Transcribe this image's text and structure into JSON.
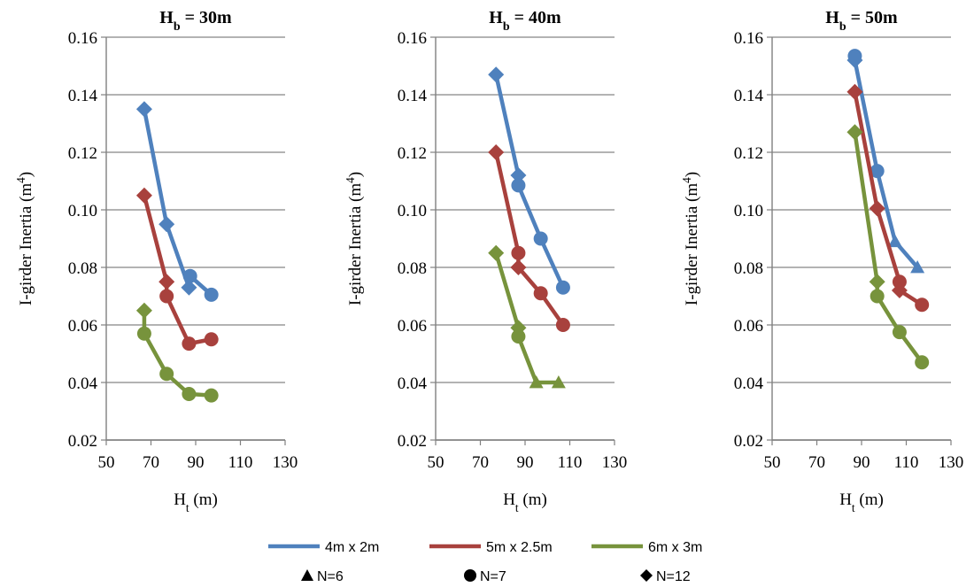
{
  "colors": {
    "4m x 2m": "#4F81BD",
    "5m x 2.5m": "#A8413D",
    "6m x 3m": "#77933C",
    "grid": "#9a9a9a",
    "axis": "#808080"
  },
  "legend": {
    "series": [
      "4m x 2m",
      "5m x 2.5m",
      "6m x 3m"
    ],
    "markers": [
      {
        "symbol": "triangle",
        "label": "N=6"
      },
      {
        "symbol": "circle",
        "label": "N=7"
      },
      {
        "symbol": "diamond",
        "label": "N=12"
      }
    ]
  },
  "chart_data": [
    {
      "type": "line",
      "title_main": "H",
      "title_sub": "b",
      "title_rest": " = 30m",
      "xlabel_main": "H",
      "xlabel_sub": "t",
      "xlabel_rest": " (m)",
      "ylabel_main": "I-girder Inertia (m",
      "ylabel_sup": "4",
      "ylabel_rest": ")",
      "xlim": [
        50,
        130
      ],
      "ylim": [
        0.02,
        0.16
      ],
      "xticks": [
        "50",
        "70",
        "90",
        "110",
        "130"
      ],
      "yticks": [
        "0.02",
        "0.04",
        "0.06",
        "0.08",
        "0.10",
        "0.12",
        "0.14",
        "0.16"
      ],
      "grid": true,
      "series": [
        {
          "name": "4m x 2m",
          "points": [
            {
              "x": 67,
              "y": 0.135,
              "marker": "diamond"
            },
            {
              "x": 77,
              "y": 0.095,
              "marker": "diamond"
            },
            {
              "x": 87,
              "y": 0.073,
              "marker": "diamond"
            },
            {
              "x": 87.5,
              "y": 0.077,
              "marker": "circle"
            },
            {
              "x": 97,
              "y": 0.0705,
              "marker": "circle"
            }
          ]
        },
        {
          "name": "5m x 2.5m",
          "points": [
            {
              "x": 67,
              "y": 0.105,
              "marker": "diamond"
            },
            {
              "x": 77,
              "y": 0.075,
              "marker": "diamond"
            },
            {
              "x": 77,
              "y": 0.07,
              "marker": "circle"
            },
            {
              "x": 87,
              "y": 0.0535,
              "marker": "circle"
            },
            {
              "x": 97,
              "y": 0.055,
              "marker": "circle"
            }
          ]
        },
        {
          "name": "6m x 3m",
          "points": [
            {
              "x": 67,
              "y": 0.065,
              "marker": "diamond"
            },
            {
              "x": 67,
              "y": 0.057,
              "marker": "circle"
            },
            {
              "x": 77,
              "y": 0.043,
              "marker": "circle"
            },
            {
              "x": 87,
              "y": 0.036,
              "marker": "circle"
            },
            {
              "x": 97,
              "y": 0.0355,
              "marker": "circle"
            }
          ]
        }
      ]
    },
    {
      "type": "line",
      "title_main": "H",
      "title_sub": "b",
      "title_rest": " = 40m",
      "xlabel_main": "H",
      "xlabel_sub": "t",
      "xlabel_rest": " (m)",
      "ylabel_main": "I-girder Inertia (m",
      "ylabel_sup": "4",
      "ylabel_rest": ")",
      "xlim": [
        50,
        130
      ],
      "ylim": [
        0.02,
        0.16
      ],
      "xticks": [
        "50",
        "70",
        "90",
        "110",
        "130"
      ],
      "yticks": [
        "0.02",
        "0.04",
        "0.06",
        "0.08",
        "0.10",
        "0.12",
        "0.14",
        "0.16"
      ],
      "grid": true,
      "series": [
        {
          "name": "4m x 2m",
          "points": [
            {
              "x": 77,
              "y": 0.147,
              "marker": "diamond"
            },
            {
              "x": 87,
              "y": 0.112,
              "marker": "diamond"
            },
            {
              "x": 87,
              "y": 0.1085,
              "marker": "circle"
            },
            {
              "x": 97,
              "y": 0.09,
              "marker": "circle"
            },
            {
              "x": 107,
              "y": 0.073,
              "marker": "circle"
            }
          ]
        },
        {
          "name": "5m x 2.5m",
          "points": [
            {
              "x": 77,
              "y": 0.12,
              "marker": "diamond"
            },
            {
              "x": 87,
              "y": 0.085,
              "marker": "circle"
            },
            {
              "x": 87,
              "y": 0.08,
              "marker": "diamond"
            },
            {
              "x": 97,
              "y": 0.071,
              "marker": "circle"
            },
            {
              "x": 107,
              "y": 0.06,
              "marker": "circle"
            }
          ]
        },
        {
          "name": "6m x 3m",
          "points": [
            {
              "x": 77,
              "y": 0.085,
              "marker": "diamond"
            },
            {
              "x": 87,
              "y": 0.059,
              "marker": "diamond"
            },
            {
              "x": 87,
              "y": 0.056,
              "marker": "circle"
            },
            {
              "x": 95,
              "y": 0.04,
              "marker": "triangle"
            },
            {
              "x": 105,
              "y": 0.04,
              "marker": "triangle"
            }
          ]
        }
      ]
    },
    {
      "type": "line",
      "title_main": "H",
      "title_sub": "b",
      "title_rest": " = 50m",
      "xlabel_main": "H",
      "xlabel_sub": "t",
      "xlabel_rest": " (m)",
      "ylabel_main": "I-girder Inertia (m",
      "ylabel_sup": "4",
      "ylabel_rest": ")",
      "xlim": [
        50,
        130
      ],
      "ylim": [
        0.02,
        0.16
      ],
      "xticks": [
        "50",
        "70",
        "90",
        "110",
        "130"
      ],
      "yticks": [
        "0.02",
        "0.04",
        "0.06",
        "0.08",
        "0.10",
        "0.12",
        "0.14",
        "0.16"
      ],
      "grid": true,
      "series": [
        {
          "name": "4m x 2m",
          "points": [
            {
              "x": 87,
              "y": 0.1535,
              "marker": "circle"
            },
            {
              "x": 87,
              "y": 0.152,
              "marker": "diamond"
            },
            {
              "x": 97,
              "y": 0.1135,
              "marker": "circle"
            },
            {
              "x": 105,
              "y": 0.089,
              "marker": "triangle"
            },
            {
              "x": 115,
              "y": 0.08,
              "marker": "triangle"
            }
          ]
        },
        {
          "name": "5m x 2.5m",
          "points": [
            {
              "x": 87,
              "y": 0.141,
              "marker": "diamond"
            },
            {
              "x": 97,
              "y": 0.1005,
              "marker": "diamond"
            },
            {
              "x": 107,
              "y": 0.075,
              "marker": "circle"
            },
            {
              "x": 107,
              "y": 0.072,
              "marker": "diamond"
            },
            {
              "x": 117,
              "y": 0.067,
              "marker": "circle"
            }
          ]
        },
        {
          "name": "6m x 3m",
          "points": [
            {
              "x": 87,
              "y": 0.127,
              "marker": "diamond"
            },
            {
              "x": 97,
              "y": 0.075,
              "marker": "diamond"
            },
            {
              "x": 97,
              "y": 0.07,
              "marker": "circle"
            },
            {
              "x": 107,
              "y": 0.0575,
              "marker": "circle"
            },
            {
              "x": 117,
              "y": 0.047,
              "marker": "circle"
            }
          ]
        }
      ]
    }
  ]
}
